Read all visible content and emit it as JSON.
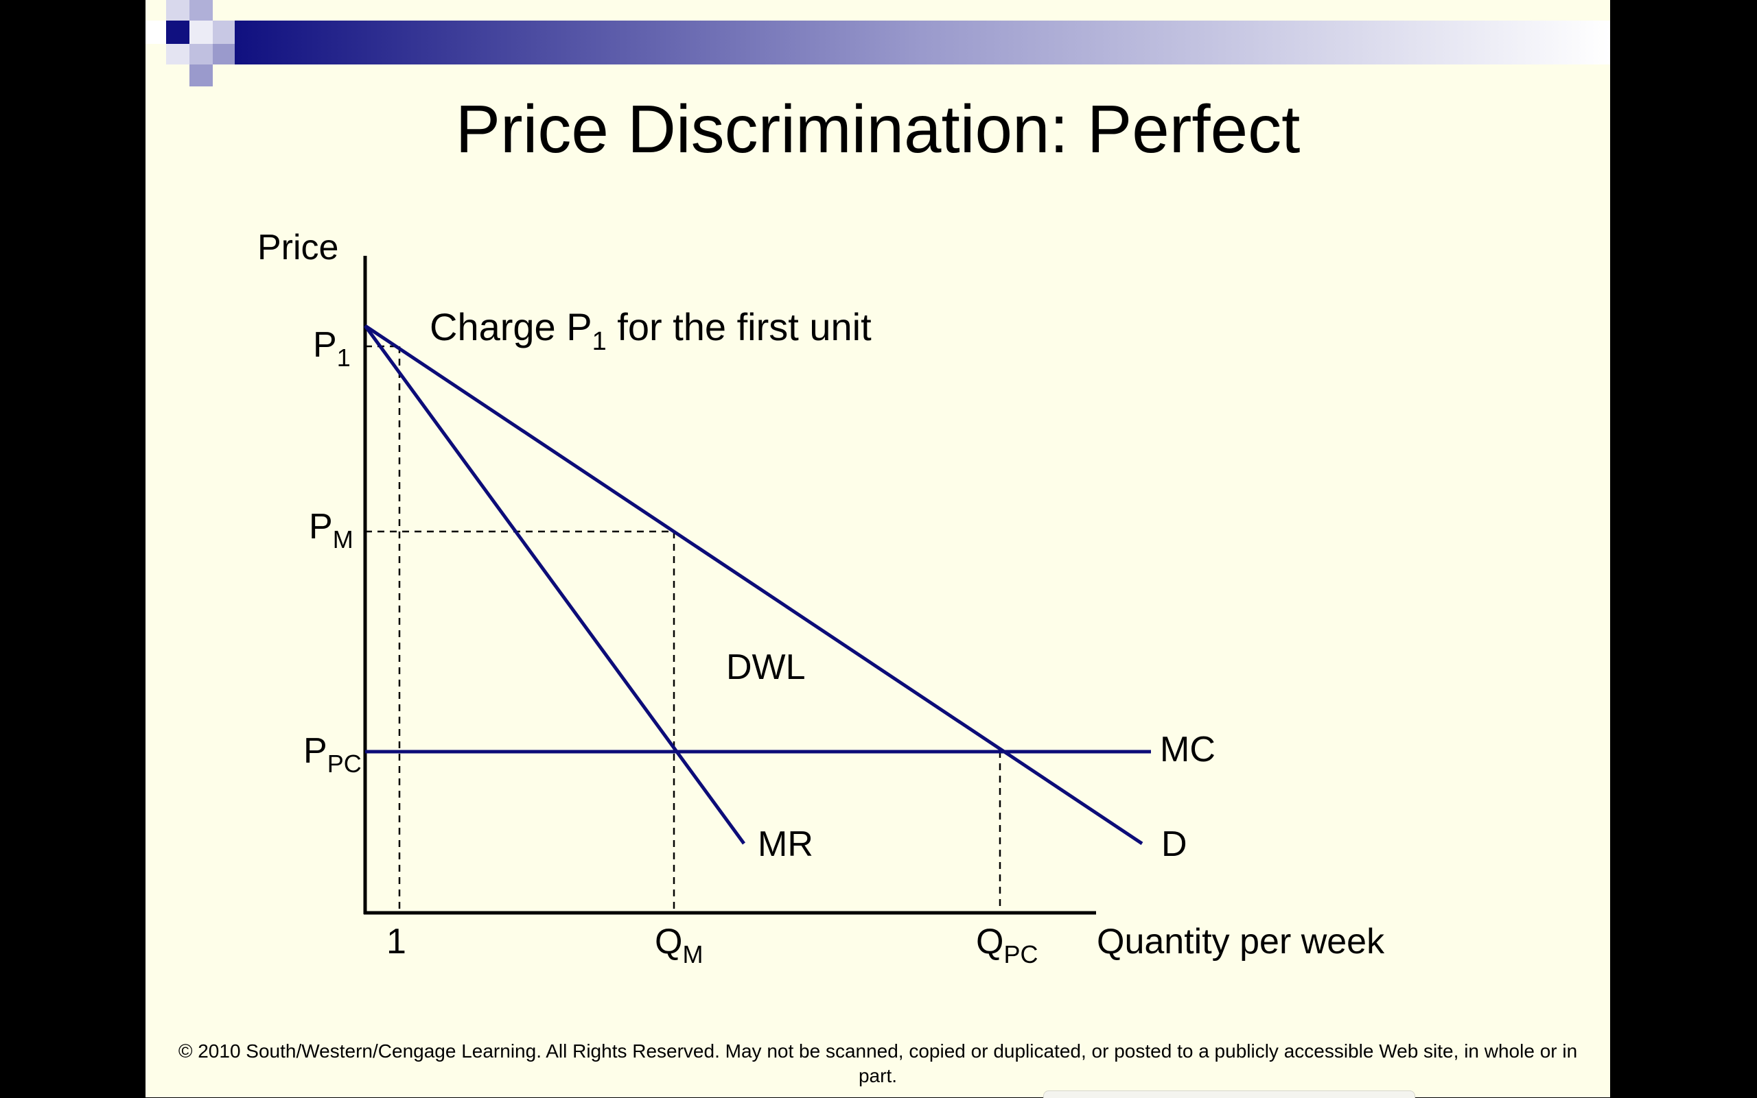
{
  "slide": {
    "title": "Price Discrimination: Perfect",
    "footer": "© 2010 South/Western/Cengage Learning. All Rights Reserved. May not be scanned, copied or duplicated, or posted to a publicly accessible Web site, in whole or in part."
  },
  "diagram": {
    "y_axis_label": "Price",
    "x_axis_label": "Quantity per week",
    "annotation": {
      "prefix": "Charge P",
      "sub": "1",
      "suffix": " for the first unit"
    },
    "price_labels": {
      "p1": {
        "main": "P",
        "sub": "1"
      },
      "pm": {
        "main": "P",
        "sub": "M"
      },
      "ppc": {
        "main": "P",
        "sub": "PC"
      }
    },
    "quantity_labels": {
      "one": "1",
      "qm": {
        "main": "Q",
        "sub": "M"
      },
      "qpc": {
        "main": "Q",
        "sub": "PC"
      }
    },
    "curves": {
      "mc": "MC",
      "d": "D",
      "mr": "MR"
    },
    "region_label": "DWL",
    "colors": {
      "curve": "#0c0c78",
      "axis": "#000000",
      "background": "#fefee9",
      "header_dark": "#101080"
    }
  }
}
